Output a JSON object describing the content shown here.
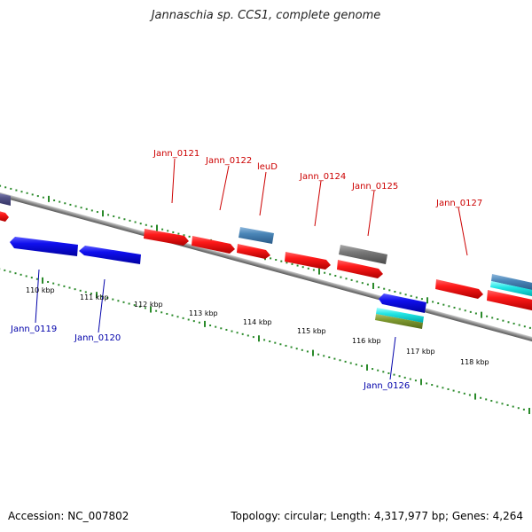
{
  "title": "Jannaschia sp. CCS1, complete genome",
  "footer": {
    "accession": "Accession: NC_007802",
    "summary": "Topology: circular; Length: 4,317,977 bp; Genes: 4,264"
  },
  "colors": {
    "backbone": "#888888",
    "tick": "#2a8a2a",
    "label_red": "#cc0000",
    "label_blue": "#0000aa"
  },
  "scale_labels": [
    "110 kbp",
    "111 kbp",
    "112 kbp",
    "113 kbp",
    "114 kbp",
    "115 kbp",
    "116 kbp",
    "117 kbp",
    "118 kbp"
  ],
  "gene_labels": {
    "top": [
      "Jann_0121",
      "Jann_0122",
      "leuD",
      "Jann_0124",
      "Jann_0125",
      "Jann_0127"
    ],
    "bottom": [
      "Jann_0119",
      "Jann_0120",
      "Jann_0126"
    ]
  }
}
